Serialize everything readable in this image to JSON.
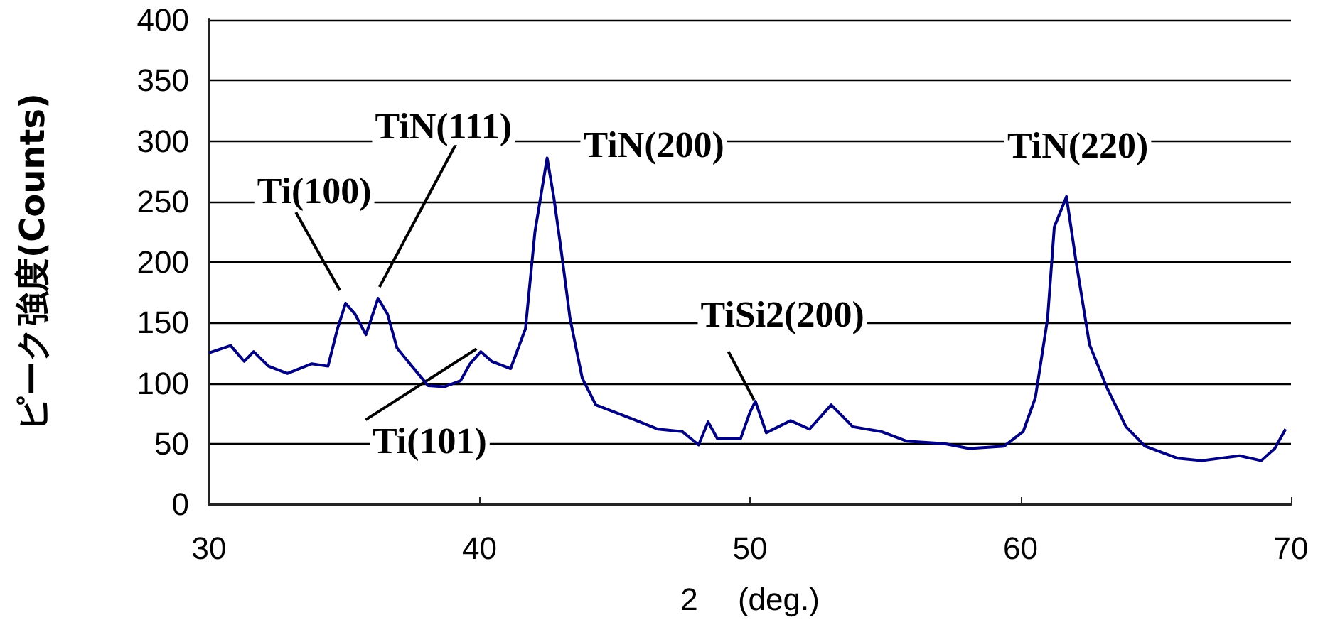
{
  "chart_data": {
    "type": "line",
    "xlabel": "2　 (deg.)",
    "ylabel": "ピーク強度(Counts)",
    "xlim": [
      30,
      70
    ],
    "xticks": [
      30,
      40,
      50,
      60,
      70
    ],
    "ylim": [
      0,
      400
    ],
    "yticks": [
      0,
      50,
      100,
      150,
      200,
      250,
      300,
      350,
      400
    ],
    "grid": "y",
    "marker": "none",
    "line_style": "solid",
    "series": [
      {
        "color": "#000080",
        "x": [
          30.0,
          30.8,
          31.3,
          31.65,
          32.2,
          32.9,
          33.8,
          34.4,
          34.75,
          35.05,
          35.4,
          35.8,
          36.25,
          36.6,
          36.95,
          37.5,
          38.1,
          38.7,
          39.3,
          39.65,
          40.05,
          40.45,
          41.15,
          41.7,
          42.05,
          42.5,
          42.75,
          43.0,
          43.35,
          43.8,
          44.3,
          45.0,
          45.7,
          46.6,
          47.5,
          48.1,
          48.45,
          48.8,
          49.65,
          50.0,
          50.2,
          50.6,
          51.5,
          52.2,
          53.0,
          53.8,
          54.85,
          55.8,
          57.2,
          58.1,
          59.4,
          60.1,
          60.55,
          61.0,
          61.25,
          61.7,
          62.05,
          62.55,
          63.2,
          63.9,
          64.6,
          65.8,
          66.7,
          68.1,
          68.9,
          69.4,
          69.8
        ],
        "values": [
          125,
          131,
          118,
          126,
          114,
          108,
          116,
          114,
          145,
          166,
          157,
          140,
          170,
          157,
          129,
          114,
          98,
          97,
          102,
          116,
          126,
          118,
          112,
          145,
          225,
          286,
          253,
          213,
          153,
          104,
          82,
          76,
          70,
          62,
          60,
          49,
          68,
          54,
          54,
          76,
          85,
          59,
          69,
          62,
          82,
          64,
          60,
          52,
          50,
          46,
          48,
          60,
          88,
          153,
          229,
          254,
          201,
          132,
          96,
          64,
          48,
          38,
          36,
          40,
          36,
          46,
          62
        ]
      }
    ],
    "annotations": [
      {
        "text": "Ti(100)",
        "x": 35.05,
        "y": 166
      },
      {
        "text": "TiN(111)",
        "x": 36.25,
        "y": 170
      },
      {
        "text": "TiN(200)",
        "x": 42.5,
        "y": 286
      },
      {
        "text": "Ti(101)",
        "x": 40.05,
        "y": 126
      },
      {
        "text": "TiSi2(200)",
        "x": 50.2,
        "y": 85
      },
      {
        "text": "TiN(220)",
        "x": 61.7,
        "y": 254
      }
    ]
  }
}
